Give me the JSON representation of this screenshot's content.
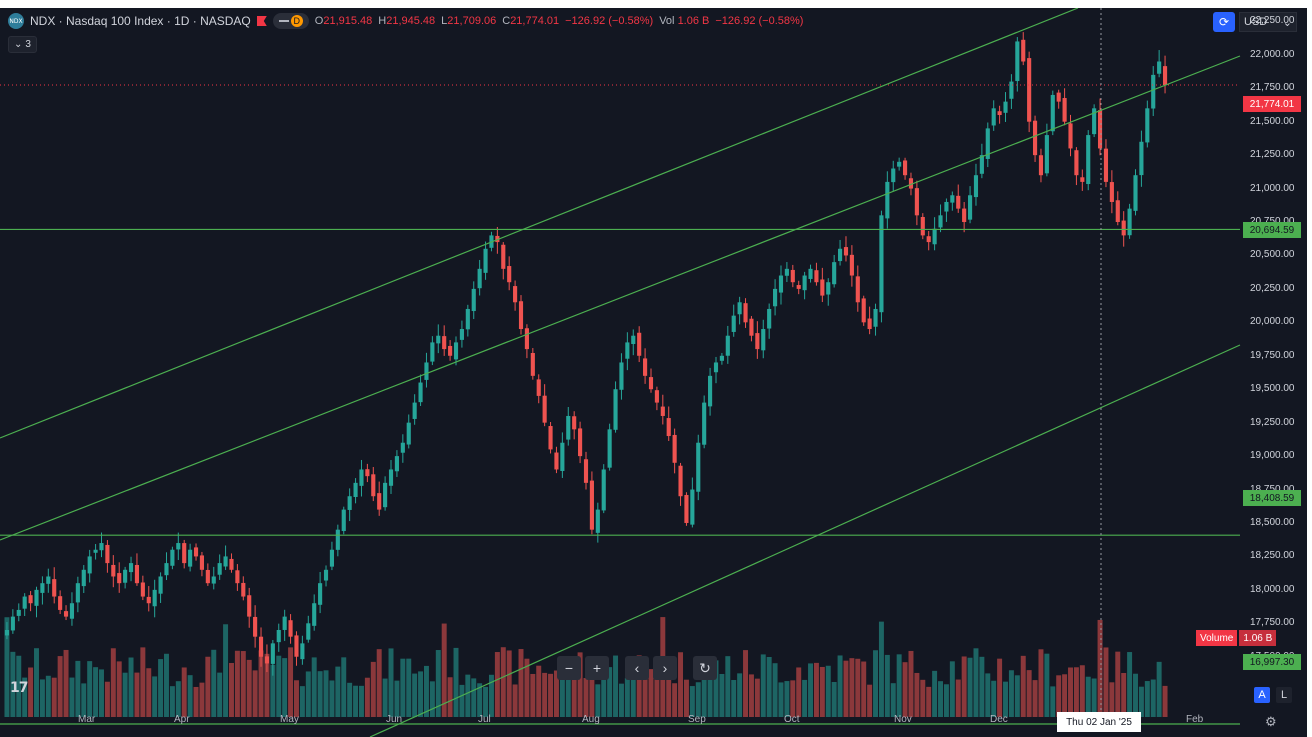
{
  "header": {
    "symbol": "NDX",
    "title": "Nasdaq 100 Index · 1D · NASDAQ",
    "interval_badge": "D",
    "open_label": "O",
    "open": "21,915.48",
    "high_label": "H",
    "high": "21,945.48",
    "low_label": "L",
    "low": "21,709.06",
    "close_label": "C",
    "close": "21,774.01",
    "change": "−126.92 (−0.58%)",
    "vol_label": "Vol",
    "vol": "1.06 B",
    "vol_change": "−126.92 (−0.58%)",
    "indicator_count": "3"
  },
  "axis": {
    "currency": "USD",
    "price_ticks": [
      "22,250.00",
      "22,000.00",
      "21,750.00",
      "21,500.00",
      "21,250.00",
      "21,000.00",
      "20,750.00",
      "20,500.00",
      "20,250.00",
      "20,000.00",
      "19,750.00",
      "19,500.00",
      "19,250.00",
      "19,000.00",
      "18,750.00",
      "18,500.00",
      "18,250.00",
      "18,000.00",
      "17,750.00",
      "17,500.00"
    ],
    "last_price": "21,774.01",
    "level_top": "20,694.59",
    "level_mid": "18,408.59",
    "level_low": "16,997.30",
    "volume_label": "Volume",
    "volume_value": "1.06 B",
    "time_ticks": [
      "Mar",
      "Apr",
      "May",
      "Jun",
      "Jul",
      "Aug",
      "Sep",
      "Oct",
      "Nov",
      "Dec",
      "Feb"
    ],
    "crosshair_date": "Thu 02 Jan '25",
    "auto_label": "A",
    "log_label": "L"
  },
  "chart_data": {
    "type": "candlestick",
    "colors": {
      "up": "#26a69a",
      "down": "#ef5350",
      "lines": "#4caf50",
      "background": "#131722"
    },
    "horizontal_levels": [
      20694.59,
      18408.59,
      16997.3
    ],
    "last_price": 21774.01,
    "ohlc_last": {
      "open": 21915.48,
      "high": 21945.48,
      "low": 21709.06,
      "close": 21774.01
    },
    "y_range": [
      16900,
      22350
    ],
    "closes": [
      17700,
      17800,
      17850,
      17950,
      17900,
      18000,
      18050,
      18100,
      17950,
      17850,
      17800,
      17900,
      18050,
      18150,
      18250,
      18300,
      18350,
      18200,
      18100,
      18050,
      18150,
      18200,
      18050,
      17950,
      17900,
      18000,
      18100,
      18200,
      18300,
      18350,
      18200,
      18300,
      18250,
      18150,
      18050,
      18100,
      18200,
      18250,
      18150,
      18050,
      17950,
      17800,
      17650,
      17500,
      17450,
      17600,
      17700,
      17800,
      17650,
      17500,
      17600,
      17750,
      17900,
      18050,
      18150,
      18300,
      18450,
      18600,
      18700,
      18800,
      18900,
      18850,
      18700,
      18600,
      18800,
      18900,
      19000,
      19100,
      19250,
      19400,
      19550,
      19700,
      19850,
      19900,
      19800,
      19750,
      19850,
      19950,
      20100,
      20250,
      20400,
      20550,
      20650,
      20600,
      20400,
      20300,
      20150,
      19950,
      19800,
      19600,
      19450,
      19250,
      19050,
      18900,
      19100,
      19300,
      19200,
      19000,
      18800,
      18450,
      18600,
      18900,
      19200,
      19500,
      19700,
      19850,
      19900,
      19750,
      19600,
      19500,
      19400,
      19300,
      19150,
      18950,
      18700,
      18500,
      18750,
      19100,
      19400,
      19600,
      19700,
      19750,
      19900,
      20050,
      20150,
      20000,
      19900,
      19800,
      19950,
      20100,
      20250,
      20350,
      20400,
      20300,
      20250,
      20350,
      20400,
      20300,
      20200,
      20300,
      20450,
      20550,
      20500,
      20350,
      20150,
      20000,
      19950,
      20100,
      20800,
      21050,
      21150,
      21200,
      21100,
      21000,
      20800,
      20650,
      20600,
      20700,
      20800,
      20900,
      20950,
      20850,
      20750,
      20950,
      21100,
      21250,
      21450,
      21600,
      21550,
      21650,
      21800,
      22100,
      21950,
      21500,
      21250,
      21100,
      21400,
      21700,
      21650,
      21500,
      21300,
      21100,
      21050,
      21400,
      21600,
      21300,
      21050,
      20900,
      20750,
      20650,
      20850,
      21100,
      21350,
      21600,
      21850,
      21950,
      21774.01
    ],
    "volume_up_color": "#26a69a",
    "volume_down_color": "#ef5350"
  }
}
